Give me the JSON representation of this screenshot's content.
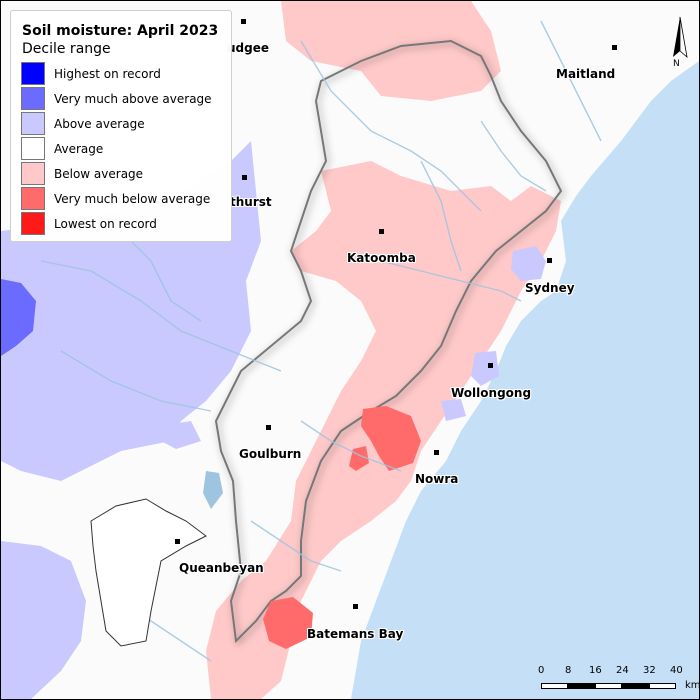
{
  "legend": {
    "title": "Soil moisture: April 2023",
    "subtitle": "Decile range",
    "items": [
      {
        "label": "Highest on record",
        "color": "#0000ff"
      },
      {
        "label": "Very much above average",
        "color": "#6b6bff"
      },
      {
        "label": "Above average",
        "color": "#c9c9ff"
      },
      {
        "label": "Average",
        "color": "#ffffff"
      },
      {
        "label": "Below average",
        "color": "#ffc9c9"
      },
      {
        "label": "Very much below average",
        "color": "#ff6b6b"
      },
      {
        "label": "Lowest on record",
        "color": "#ff1a1a"
      }
    ]
  },
  "towns": [
    {
      "name": "Mudgee",
      "label": "udgee"
    },
    {
      "name": "Maitland",
      "label": "Maitland"
    },
    {
      "name": "Bathurst",
      "label": "thurst"
    },
    {
      "name": "Katoomba",
      "label": "Katoomba"
    },
    {
      "name": "Sydney",
      "label": "Sydney"
    },
    {
      "name": "Wollongong",
      "label": "Wollongong"
    },
    {
      "name": "Goulburn",
      "label": "Goulburn"
    },
    {
      "name": "Nowra",
      "label": "Nowra"
    },
    {
      "name": "Queanbeyan",
      "label": "Queanbeyan"
    },
    {
      "name": "Batemans Bay",
      "label": "Batemans Bay"
    }
  ],
  "north_arrow": {
    "label": "N"
  },
  "scale_bar": {
    "ticks": [
      "0",
      "8",
      "16",
      "24",
      "32",
      "40"
    ],
    "unit": "km"
  },
  "colors": {
    "ocean": "#c5dff6",
    "river": "#9ec4e0",
    "catchment_outline": "#777777",
    "land": "#fbfbfb"
  }
}
